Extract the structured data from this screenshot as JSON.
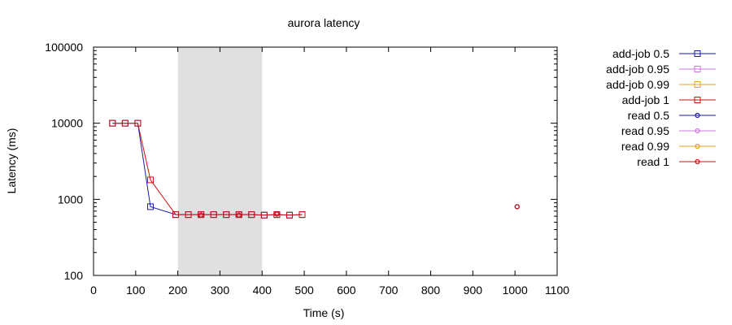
{
  "chart_data": {
    "type": "line",
    "title": "aurora latency",
    "xlabel": "Time (s)",
    "ylabel": "Latency (ms)",
    "x_scale": "linear",
    "y_scale": "log",
    "xlim": [
      0,
      1100
    ],
    "ylim": [
      100,
      100000
    ],
    "x_ticks": [
      "0",
      "100",
      "200",
      "300",
      "400",
      "500",
      "600",
      "700",
      "800",
      "900",
      "1000",
      "1100"
    ],
    "y_ticks": [
      "100",
      "1000",
      "10000",
      "100000"
    ],
    "grid": false,
    "legend_position": "outside-right",
    "shaded_region": {
      "x_start": 200,
      "x_end": 400,
      "color": "#e0e0e0"
    },
    "series": [
      {
        "name": "add-job 0.5",
        "color": "#1a1aa8",
        "marker": "square",
        "points": [
          [
            45,
            10000
          ],
          [
            75,
            10000
          ],
          [
            105,
            10000
          ],
          [
            135,
            800
          ],
          [
            195,
            630
          ],
          [
            225,
            630
          ],
          [
            255,
            630
          ],
          [
            285,
            630
          ],
          [
            315,
            630
          ],
          [
            345,
            630
          ],
          [
            375,
            630
          ],
          [
            405,
            620
          ],
          [
            435,
            630
          ],
          [
            465,
            620
          ],
          [
            495,
            630
          ]
        ]
      },
      {
        "name": "add-job 0.95",
        "color": "#cc77dd",
        "marker": "square",
        "points": []
      },
      {
        "name": "add-job 0.99",
        "color": "#e6a020",
        "marker": "square",
        "points": []
      },
      {
        "name": "add-job 1",
        "color": "#cc1111",
        "marker": "square",
        "points": [
          [
            45,
            10000
          ],
          [
            75,
            10000
          ],
          [
            105,
            10000
          ],
          [
            135,
            1800
          ],
          [
            195,
            630
          ],
          [
            225,
            630
          ],
          [
            255,
            630
          ],
          [
            285,
            630
          ],
          [
            315,
            630
          ],
          [
            345,
            630
          ],
          [
            375,
            630
          ],
          [
            405,
            620
          ],
          [
            435,
            630
          ],
          [
            465,
            620
          ],
          [
            495,
            630
          ]
        ]
      },
      {
        "name": "read 0.5",
        "color": "#1a1aa8",
        "marker": "circle",
        "points": [
          [
            255,
            620
          ],
          [
            345,
            620
          ],
          [
            435,
            640
          ],
          [
            1005,
            800
          ]
        ]
      },
      {
        "name": "read 0.95",
        "color": "#cc77dd",
        "marker": "circle",
        "points": []
      },
      {
        "name": "read 0.99",
        "color": "#e6a020",
        "marker": "circle",
        "points": []
      },
      {
        "name": "read 1",
        "color": "#cc1111",
        "marker": "circle",
        "points": [
          [
            255,
            620
          ],
          [
            345,
            620
          ],
          [
            435,
            640
          ],
          [
            1005,
            800
          ]
        ]
      }
    ]
  }
}
